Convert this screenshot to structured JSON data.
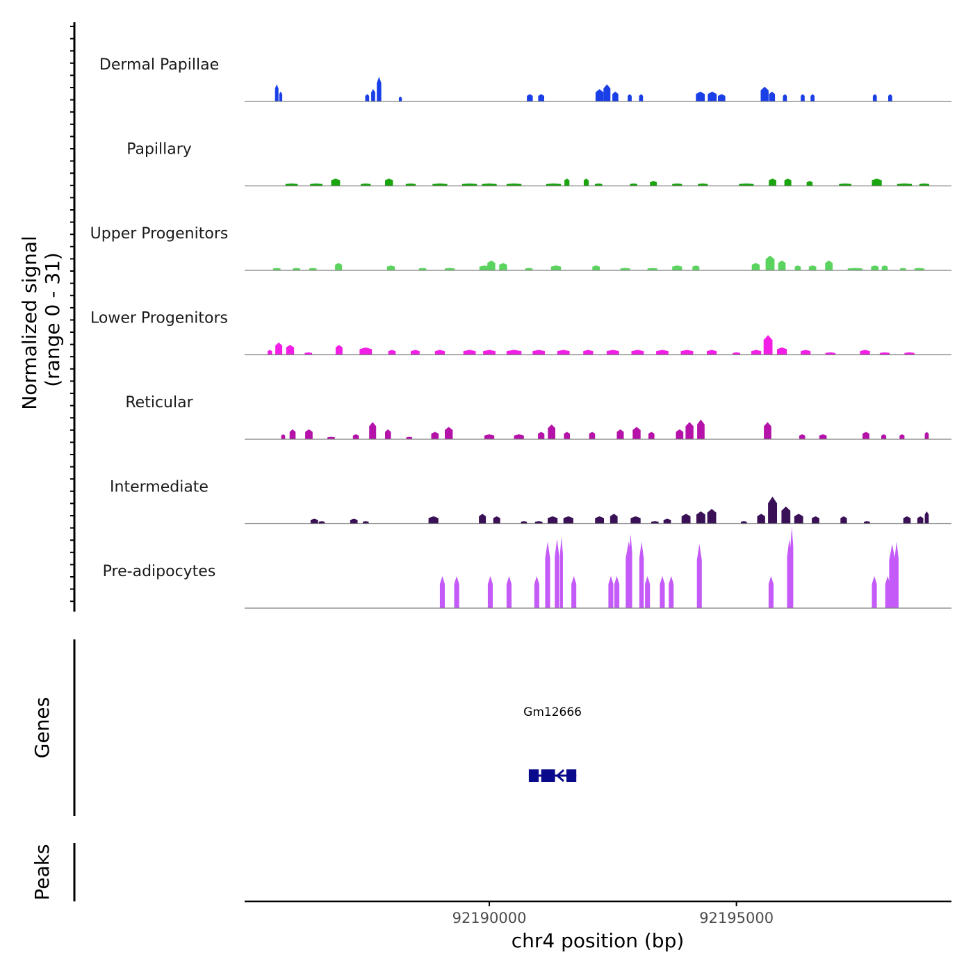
{
  "chart_data": {
    "type": "area",
    "chromosome": "chr4",
    "xlabel": "chr4 position (bp)",
    "xlim": [
      92185050,
      92199350
    ],
    "x_ticks": [
      92190000,
      92195000
    ],
    "x_tick_labels": [
      "92190000",
      "92195000"
    ],
    "coverage_ylabel_line1": "Normalized signal",
    "coverage_ylabel_line2": "(range 0 - 31)",
    "ylim": [
      0,
      31
    ],
    "genes_ylabel": "Genes",
    "peaks_ylabel": "Peaks",
    "tracks": [
      {
        "name": "Dermal Papillae",
        "color": "#1a3fe6",
        "peaks": [
          [
            92185700,
            7,
            70
          ],
          [
            92185780,
            4,
            60
          ],
          [
            92187530,
            3,
            80
          ],
          [
            92187650,
            5,
            80
          ],
          [
            92187770,
            10,
            90
          ],
          [
            92188200,
            2,
            60
          ],
          [
            92190820,
            3,
            120
          ],
          [
            92191050,
            3,
            120
          ],
          [
            92192230,
            5,
            160
          ],
          [
            92192380,
            7,
            140
          ],
          [
            92192550,
            4,
            120
          ],
          [
            92192840,
            3,
            80
          ],
          [
            92193070,
            3,
            80
          ],
          [
            92194270,
            4,
            180
          ],
          [
            92194510,
            4,
            180
          ],
          [
            92194700,
            3,
            150
          ],
          [
            92195570,
            6,
            160
          ],
          [
            92195720,
            4,
            120
          ],
          [
            92195980,
            3,
            80
          ],
          [
            92196340,
            3,
            80
          ],
          [
            92196540,
            3,
            80
          ],
          [
            92197800,
            3,
            80
          ],
          [
            92198110,
            3,
            80
          ]
        ]
      },
      {
        "name": "Papillary",
        "color": "#1aa50f",
        "peaks": [
          [
            92186000,
            1,
            250
          ],
          [
            92186500,
            1,
            250
          ],
          [
            92186890,
            3,
            180
          ],
          [
            92187500,
            1,
            200
          ],
          [
            92187970,
            3,
            160
          ],
          [
            92188410,
            1,
            200
          ],
          [
            92189000,
            1,
            300
          ],
          [
            92189600,
            1,
            300
          ],
          [
            92190000,
            1,
            300
          ],
          [
            92190500,
            1,
            300
          ],
          [
            92191300,
            1,
            300
          ],
          [
            92191570,
            3,
            100
          ],
          [
            92191960,
            3,
            100
          ],
          [
            92192210,
            1,
            150
          ],
          [
            92192920,
            1,
            150
          ],
          [
            92193320,
            2,
            140
          ],
          [
            92193800,
            1,
            200
          ],
          [
            92194320,
            1,
            200
          ],
          [
            92195200,
            1,
            300
          ],
          [
            92195730,
            3,
            150
          ],
          [
            92196040,
            3,
            140
          ],
          [
            92196480,
            2,
            120
          ],
          [
            92197200,
            1,
            250
          ],
          [
            92197840,
            3,
            200
          ],
          [
            92198400,
            1,
            300
          ],
          [
            92198800,
            1,
            200
          ]
        ]
      },
      {
        "name": "Upper Progenitors",
        "color": "#5bd45f",
        "peaks": [
          [
            92185700,
            1,
            150
          ],
          [
            92186100,
            1,
            150
          ],
          [
            92186430,
            1,
            150
          ],
          [
            92186950,
            3,
            140
          ],
          [
            92188010,
            2,
            160
          ],
          [
            92188650,
            1,
            150
          ],
          [
            92189200,
            1,
            200
          ],
          [
            92189900,
            2,
            200
          ],
          [
            92190040,
            4,
            160
          ],
          [
            92190280,
            3,
            160
          ],
          [
            92190800,
            1,
            150
          ],
          [
            92191350,
            2,
            200
          ],
          [
            92192160,
            2,
            150
          ],
          [
            92192750,
            1,
            200
          ],
          [
            92193300,
            1,
            200
          ],
          [
            92193800,
            2,
            200
          ],
          [
            92194180,
            2,
            140
          ],
          [
            92195390,
            3,
            160
          ],
          [
            92195680,
            6,
            180
          ],
          [
            92195920,
            4,
            150
          ],
          [
            92196240,
            2,
            120
          ],
          [
            92196540,
            2,
            150
          ],
          [
            92196870,
            4,
            150
          ],
          [
            92197400,
            1,
            300
          ],
          [
            92197800,
            2,
            150
          ],
          [
            92198000,
            2,
            120
          ],
          [
            92198370,
            1,
            120
          ],
          [
            92198700,
            1,
            200
          ]
        ]
      },
      {
        "name": "Lower Progenitors",
        "color": "#f21ee6",
        "peaks": [
          [
            92185560,
            2,
            90
          ],
          [
            92185740,
            5,
            140
          ],
          [
            92185970,
            4,
            160
          ],
          [
            92186340,
            1,
            150
          ],
          [
            92186960,
            4,
            140
          ],
          [
            92187500,
            3,
            250
          ],
          [
            92188030,
            2,
            150
          ],
          [
            92188500,
            2,
            180
          ],
          [
            92189000,
            2,
            200
          ],
          [
            92189600,
            2,
            250
          ],
          [
            92190000,
            2,
            250
          ],
          [
            92190500,
            2,
            300
          ],
          [
            92191000,
            2,
            250
          ],
          [
            92191500,
            2,
            250
          ],
          [
            92192000,
            2,
            200
          ],
          [
            92192500,
            2,
            250
          ],
          [
            92193000,
            2,
            250
          ],
          [
            92193500,
            2,
            250
          ],
          [
            92194000,
            2,
            250
          ],
          [
            92194500,
            2,
            200
          ],
          [
            92195000,
            1,
            150
          ],
          [
            92195400,
            2,
            200
          ],
          [
            92195640,
            8,
            180
          ],
          [
            92195920,
            3,
            200
          ],
          [
            92196400,
            2,
            200
          ],
          [
            92196900,
            1,
            200
          ],
          [
            92197600,
            2,
            200
          ],
          [
            92198000,
            1,
            200
          ],
          [
            92198500,
            1,
            200
          ]
        ]
      },
      {
        "name": "Reticular",
        "color": "#b412a8",
        "peaks": [
          [
            92185830,
            2,
            80
          ],
          [
            92186020,
            4,
            120
          ],
          [
            92186350,
            4,
            150
          ],
          [
            92186800,
            1,
            150
          ],
          [
            92187300,
            2,
            120
          ],
          [
            92187640,
            7,
            140
          ],
          [
            92187950,
            4,
            120
          ],
          [
            92188380,
            1,
            120
          ],
          [
            92188900,
            3,
            150
          ],
          [
            92189180,
            5,
            160
          ],
          [
            92190000,
            2,
            200
          ],
          [
            92190600,
            2,
            200
          ],
          [
            92191050,
            3,
            130
          ],
          [
            92191260,
            6,
            150
          ],
          [
            92191570,
            3,
            120
          ],
          [
            92192080,
            3,
            120
          ],
          [
            92192650,
            4,
            140
          ],
          [
            92192980,
            5,
            160
          ],
          [
            92193280,
            3,
            120
          ],
          [
            92193850,
            4,
            150
          ],
          [
            92194050,
            7,
            160
          ],
          [
            92194280,
            8,
            150
          ],
          [
            92195630,
            7,
            150
          ],
          [
            92196330,
            2,
            120
          ],
          [
            92196750,
            2,
            150
          ],
          [
            92197620,
            3,
            140
          ],
          [
            92197980,
            2,
            100
          ],
          [
            92198350,
            2,
            100
          ],
          [
            92198850,
            3,
            80
          ]
        ]
      },
      {
        "name": "Intermediate",
        "color": "#3a1056",
        "peaks": [
          [
            92186460,
            2,
            150
          ],
          [
            92186610,
            1,
            120
          ],
          [
            92187260,
            2,
            150
          ],
          [
            92187500,
            1,
            120
          ],
          [
            92188870,
            3,
            200
          ],
          [
            92189860,
            4,
            140
          ],
          [
            92190150,
            3,
            140
          ],
          [
            92190700,
            1,
            120
          ],
          [
            92191000,
            1,
            150
          ],
          [
            92191280,
            3,
            200
          ],
          [
            92191600,
            3,
            200
          ],
          [
            92192230,
            3,
            180
          ],
          [
            92192520,
            4,
            150
          ],
          [
            92192960,
            3,
            200
          ],
          [
            92193350,
            1,
            150
          ],
          [
            92193600,
            2,
            150
          ],
          [
            92193980,
            4,
            180
          ],
          [
            92194280,
            5,
            180
          ],
          [
            92194500,
            6,
            180
          ],
          [
            92195150,
            1,
            120
          ],
          [
            92195500,
            4,
            160
          ],
          [
            92195730,
            11,
            180
          ],
          [
            92196000,
            7,
            180
          ],
          [
            92196260,
            4,
            180
          ],
          [
            92196600,
            3,
            150
          ],
          [
            92197170,
            3,
            130
          ],
          [
            92197640,
            1,
            120
          ],
          [
            92198450,
            3,
            150
          ],
          [
            92198720,
            3,
            120
          ],
          [
            92198850,
            5,
            80
          ]
        ]
      },
      {
        "name": "Pre-adipocytes",
        "color": "#c45af8",
        "peaks": [
          [
            92189050,
            13,
            100
          ],
          [
            92189340,
            13,
            100
          ],
          [
            92190020,
            13,
            100
          ],
          [
            92190400,
            13,
            100
          ],
          [
            92190960,
            13,
            100
          ],
          [
            92191180,
            27,
            100
          ],
          [
            92191370,
            28,
            90
          ],
          [
            92191460,
            29,
            60
          ],
          [
            92191710,
            13,
            100
          ],
          [
            92192460,
            13,
            100
          ],
          [
            92192580,
            13,
            100
          ],
          [
            92192820,
            27,
            120
          ],
          [
            92192860,
            30,
            60
          ],
          [
            92193080,
            27,
            90
          ],
          [
            92193200,
            13,
            100
          ],
          [
            92193500,
            13,
            100
          ],
          [
            92193680,
            13,
            100
          ],
          [
            92194250,
            26,
            100
          ],
          [
            92195700,
            13,
            100
          ],
          [
            92196070,
            28,
            90
          ],
          [
            92196120,
            33,
            60
          ],
          [
            92197790,
            13,
            100
          ],
          [
            92198060,
            13,
            100
          ],
          [
            92198150,
            26,
            120
          ],
          [
            92198240,
            27,
            80
          ]
        ]
      }
    ],
    "genes": [
      {
        "name": "Gm12666",
        "start": 92190800,
        "end": 92191760,
        "color": "#0a0a8c",
        "exons": [
          [
            92190800,
            92191000
          ],
          [
            92191050,
            92191330
          ],
          [
            92191560,
            92191760
          ]
        ],
        "arrows": [
          [
            92191420,
            "left"
          ],
          [
            92191100,
            "left"
          ]
        ]
      }
    ],
    "peaks_track": []
  }
}
